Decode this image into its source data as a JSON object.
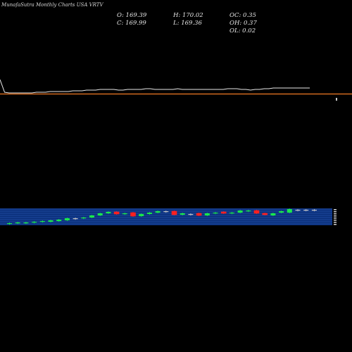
{
  "header": {
    "title": "MunafaSutra Monthly Charts USA VRTV"
  },
  "ohlc": {
    "o": "O: 169.39",
    "h": "H: 170.02",
    "oc": "OC: 0.35",
    "c": "C: 169.99",
    "l": "L: 169.36",
    "oh": "OH: 0.37",
    "ol": "OL: 0.02"
  },
  "colors": {
    "background": "#000000",
    "price_line": "#e8e8e8",
    "moving_average": "#d2691e",
    "band_fill": "#0a2f7a",
    "band_line": "#3f6fd8",
    "up_candle": "#19e84b",
    "down_candle": "#ff2020",
    "neutral_candle": "#c0c0c0"
  },
  "chart_data": {
    "type": "line",
    "description_series": [
      {
        "name": "price",
        "values": [
          180,
          162,
          161,
          161,
          161,
          161,
          161,
          161,
          162,
          162,
          162,
          163,
          163,
          163,
          163,
          163,
          164,
          164,
          164,
          165,
          165,
          165,
          166,
          166,
          166,
          166,
          165,
          165,
          166,
          166,
          166,
          166,
          167,
          167,
          166,
          166,
          166,
          166,
          166,
          167,
          166,
          166,
          166,
          166,
          166,
          166,
          166,
          166,
          166,
          166,
          167,
          167,
          167,
          166,
          166,
          165,
          166,
          166,
          167,
          167,
          168,
          168,
          168,
          168,
          168,
          168,
          168,
          168,
          168
        ]
      },
      {
        "name": "moving-average",
        "values": [
          160,
          160,
          160,
          160,
          160,
          160,
          160,
          160,
          160,
          160,
          160,
          160,
          160,
          160,
          160,
          160,
          160,
          160,
          160,
          160,
          160,
          160,
          160,
          160,
          160,
          160,
          160,
          160,
          160,
          160,
          160,
          160,
          160,
          160,
          160,
          160,
          160,
          160,
          160,
          160,
          160,
          160,
          160,
          160,
          160,
          160,
          160,
          160,
          160,
          160,
          160,
          160,
          160,
          160,
          160,
          160,
          160,
          160,
          160,
          160,
          160,
          160,
          160,
          160,
          160,
          160,
          160,
          160,
          160
        ]
      }
    ],
    "candles": [
      {
        "dir": "up",
        "open": 318,
        "close": 317
      },
      {
        "dir": "up",
        "open": 317,
        "close": 316
      },
      {
        "dir": "up",
        "open": 316,
        "close": 316
      },
      {
        "dir": "up",
        "open": 316,
        "close": 315
      },
      {
        "dir": "up",
        "open": 315,
        "close": 314
      },
      {
        "dir": "up",
        "open": 315,
        "close": 313
      },
      {
        "dir": "up",
        "open": 314,
        "close": 312
      },
      {
        "dir": "up",
        "open": 313,
        "close": 310
      },
      {
        "dir": "neutral",
        "open": 310,
        "close": 310
      },
      {
        "dir": "up",
        "open": 310,
        "close": 309
      },
      {
        "dir": "up",
        "open": 309,
        "close": 306
      },
      {
        "dir": "up",
        "open": 306,
        "close": 303
      },
      {
        "dir": "up",
        "open": 303,
        "close": 301
      },
      {
        "dir": "down",
        "open": 301,
        "close": 304
      },
      {
        "dir": "up",
        "open": 304,
        "close": 303
      },
      {
        "dir": "down",
        "open": 302,
        "close": 307
      },
      {
        "dir": "up",
        "open": 307,
        "close": 304
      },
      {
        "dir": "up",
        "open": 304,
        "close": 302
      },
      {
        "dir": "up",
        "open": 302,
        "close": 300
      },
      {
        "dir": "neutral",
        "open": 300,
        "close": 300
      },
      {
        "dir": "down",
        "open": 300,
        "close": 305
      },
      {
        "dir": "up",
        "open": 305,
        "close": 303
      },
      {
        "dir": "neutral",
        "open": 304,
        "close": 304
      },
      {
        "dir": "down",
        "open": 303,
        "close": 306
      },
      {
        "dir": "up",
        "open": 306,
        "close": 303
      },
      {
        "dir": "up",
        "open": 303,
        "close": 302
      },
      {
        "dir": "down",
        "open": 301,
        "close": 303
      },
      {
        "dir": "up",
        "open": 303,
        "close": 302
      },
      {
        "dir": "up",
        "open": 302,
        "close": 299
      },
      {
        "dir": "up",
        "open": 300,
        "close": 299
      },
      {
        "dir": "down",
        "open": 299,
        "close": 303
      },
      {
        "dir": "down",
        "open": 303,
        "close": 305
      },
      {
        "dir": "up",
        "open": 306,
        "close": 303
      },
      {
        "dir": "up",
        "open": 302,
        "close": 300
      },
      {
        "dir": "up",
        "open": 302,
        "close": 297
      },
      {
        "dir": "neutral",
        "open": 298,
        "close": 298
      },
      {
        "dir": "neutral",
        "open": 298,
        "close": 298
      },
      {
        "dir": "neutral",
        "open": 298,
        "close": 298
      }
    ]
  }
}
